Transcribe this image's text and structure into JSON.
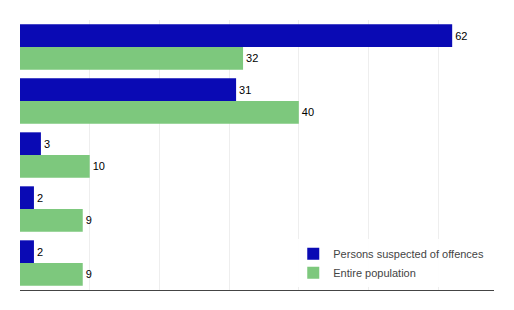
{
  "chart_data": {
    "type": "bar",
    "orientation": "horizontal",
    "categories": [
      null,
      null,
      null,
      null,
      null
    ],
    "series": [
      {
        "name": "Persons suspected of offences",
        "color": "#0a0ab4",
        "values": [
          62,
          31,
          3,
          2,
          2
        ]
      },
      {
        "name": "Entire population",
        "color": "#7dc87d",
        "values": [
          32,
          40,
          10,
          9,
          9
        ]
      }
    ],
    "xlim": [
      0,
      68
    ],
    "xticks": [
      0,
      10,
      20,
      30,
      40,
      50,
      60
    ],
    "grid": true,
    "tick_labels": false,
    "data_labels": true,
    "legend": "lower right"
  }
}
